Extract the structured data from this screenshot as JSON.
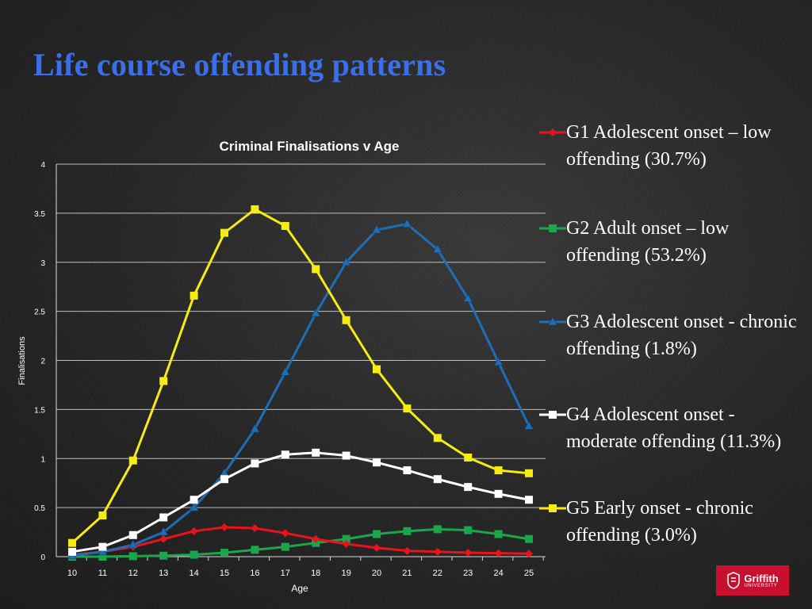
{
  "slide": {
    "title": "Life course offending patterns"
  },
  "logo": {
    "main": "Griffith",
    "sub": "UNIVERSITY"
  },
  "chart_data": {
    "type": "line",
    "title": "Criminal Finalisations v Age",
    "xlabel": "Age",
    "ylabel": "Finalisations",
    "x": [
      10,
      11,
      12,
      13,
      14,
      15,
      16,
      17,
      18,
      19,
      20,
      21,
      22,
      23,
      24,
      25
    ],
    "ylim": [
      0,
      4
    ],
    "yticks": [
      "0",
      "0.5",
      "1",
      "1.5",
      "2",
      "2.5",
      "3",
      "3.5",
      "4"
    ],
    "grid": true,
    "legend_position": "right",
    "series": [
      {
        "name": "G1 Adolescent onset – low offending (30.7%)",
        "color": "#e8141c",
        "marker": "diamond",
        "values": [
          0.02,
          0.05,
          0.1,
          0.18,
          0.26,
          0.3,
          0.29,
          0.24,
          0.18,
          0.13,
          0.09,
          0.06,
          0.05,
          0.04,
          0.035,
          0.03
        ]
      },
      {
        "name": "G2 Adult onset – low offending  (53.2%)",
        "color": "#1aa64b",
        "marker": "square",
        "values": [
          0.0,
          0.0,
          0.005,
          0.01,
          0.02,
          0.04,
          0.07,
          0.1,
          0.14,
          0.18,
          0.23,
          0.26,
          0.28,
          0.27,
          0.23,
          0.18
        ]
      },
      {
        "name": "G3 Adolescent onset - chronic offending (1.8%)",
        "color": "#1f6eb5",
        "marker": "triangle",
        "values": [
          0.01,
          0.05,
          0.12,
          0.25,
          0.5,
          0.85,
          1.3,
          1.88,
          2.48,
          3.0,
          3.33,
          3.39,
          3.13,
          2.63,
          1.98,
          1.33
        ]
      },
      {
        "name": "G4 Adolescent onset - moderate offending (11.3%)",
        "color": "#ffffff",
        "marker": "square",
        "values": [
          0.05,
          0.1,
          0.22,
          0.4,
          0.58,
          0.79,
          0.95,
          1.04,
          1.06,
          1.03,
          0.96,
          0.88,
          0.79,
          0.71,
          0.64,
          0.58
        ]
      },
      {
        "name": "G5 Early onset - chronic offending (3.0%)",
        "color": "#f5ec12",
        "marker": "square",
        "values": [
          0.14,
          0.42,
          0.98,
          1.79,
          2.66,
          3.3,
          3.54,
          3.37,
          2.93,
          2.41,
          1.91,
          1.51,
          1.21,
          1.01,
          0.88,
          0.85
        ]
      }
    ]
  }
}
